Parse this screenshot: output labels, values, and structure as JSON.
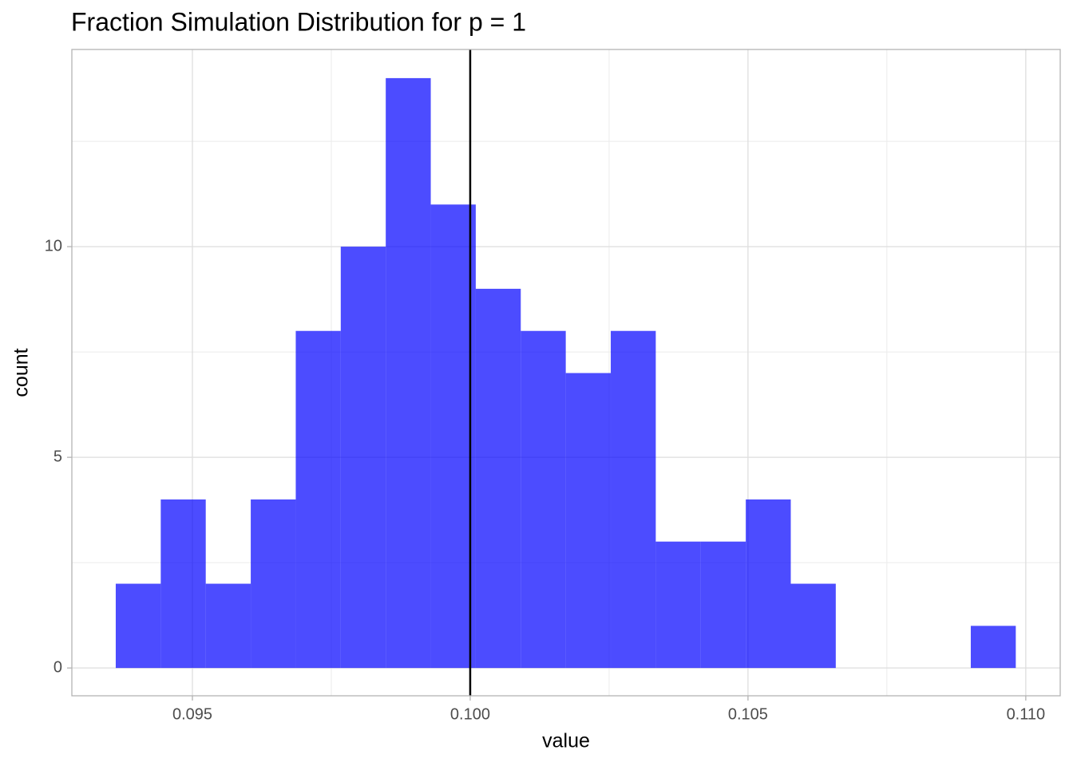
{
  "chart_data": {
    "type": "histogram",
    "title": "Fraction Simulation Distribution for p = 1",
    "x_label": "value",
    "y_label": "count",
    "bins": [
      0.09362,
      0.09443,
      0.09524,
      0.09605,
      0.09686,
      0.09767,
      0.09848,
      0.09929,
      0.1001,
      0.10091,
      0.10172,
      0.10253,
      0.10334,
      0.10415,
      0.10496,
      0.10577,
      0.10658,
      0.10739,
      0.1082,
      0.10901,
      0.10982
    ],
    "counts": [
      2,
      4,
      2,
      4,
      8,
      10,
      14,
      11,
      9,
      8,
      7,
      8,
      3,
      3,
      4,
      2,
      0,
      0,
      0,
      1
    ],
    "color": "#0000ff",
    "alpha": 0.7,
    "vline": 0.1,
    "vline_color": "#000000",
    "xlim": [
      0.09283,
      0.11062
    ],
    "ylim": [
      -0.66,
      14.68
    ],
    "xticks": [
      0.095,
      {
        "value": 0.1,
        "label": "0.100"
      },
      0.105,
      {
        "value": 0.11,
        "label": "0.110"
      }
    ],
    "yticks": [
      0,
      5,
      10
    ],
    "x_minor_ticks": [
      0.0975,
      0.1025,
      0.1075
    ],
    "y_minor_ticks": [
      2.5,
      7.5,
      12.5
    ],
    "grid": true
  }
}
